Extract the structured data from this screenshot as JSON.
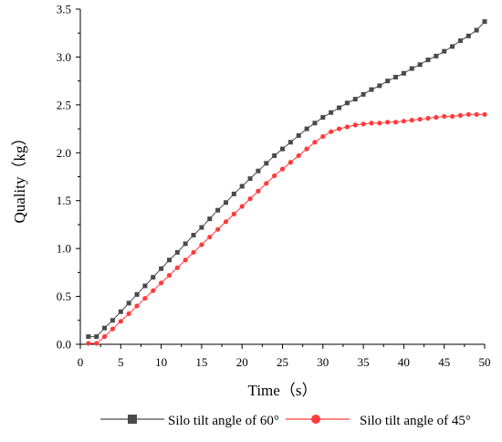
{
  "chart_data": {
    "type": "line",
    "title": "",
    "xlabel": "Time（s）",
    "ylabel": "Quality（kg）",
    "xlim": [
      0,
      50
    ],
    "ylim": [
      0,
      3.5
    ],
    "x_ticks": [
      "0",
      "5",
      "10",
      "15",
      "20",
      "25",
      "30",
      "35",
      "40",
      "45",
      "50"
    ],
    "y_ticks": [
      "0.0",
      "0.5",
      "1.0",
      "1.5",
      "2.0",
      "2.5",
      "3.0",
      "3.5"
    ],
    "grid": false,
    "legend_position": "bottom",
    "x": [
      1,
      2,
      3,
      4,
      5,
      6,
      7,
      8,
      9,
      10,
      11,
      12,
      13,
      14,
      15,
      16,
      17,
      18,
      19,
      20,
      21,
      22,
      23,
      24,
      25,
      26,
      27,
      28,
      29,
      30,
      31,
      32,
      33,
      34,
      35,
      36,
      37,
      38,
      39,
      40,
      41,
      42,
      43,
      44,
      45,
      46,
      47,
      48,
      49,
      50
    ],
    "series": [
      {
        "name": "Silo tilt angle of 60°",
        "color": "#4a4a4a",
        "marker": "square",
        "values": [
          0.08,
          0.08,
          0.17,
          0.25,
          0.34,
          0.43,
          0.52,
          0.61,
          0.7,
          0.79,
          0.88,
          0.96,
          1.05,
          1.14,
          1.22,
          1.31,
          1.4,
          1.48,
          1.57,
          1.65,
          1.73,
          1.81,
          1.89,
          1.97,
          2.04,
          2.11,
          2.18,
          2.25,
          2.31,
          2.37,
          2.42,
          2.47,
          2.52,
          2.56,
          2.61,
          2.66,
          2.7,
          2.75,
          2.79,
          2.83,
          2.88,
          2.92,
          2.97,
          3.01,
          3.06,
          3.11,
          3.17,
          3.22,
          3.28,
          3.37
        ]
      },
      {
        "name": "Silo tilt angle of 45°",
        "color": "#ff3b3b",
        "marker": "circle",
        "values": [
          0.01,
          0.01,
          0.08,
          0.16,
          0.24,
          0.32,
          0.4,
          0.48,
          0.56,
          0.64,
          0.72,
          0.8,
          0.88,
          0.96,
          1.04,
          1.12,
          1.2,
          1.28,
          1.36,
          1.44,
          1.52,
          1.6,
          1.68,
          1.76,
          1.83,
          1.9,
          1.97,
          2.04,
          2.11,
          2.17,
          2.22,
          2.25,
          2.27,
          2.29,
          2.3,
          2.31,
          2.31,
          2.32,
          2.32,
          2.33,
          2.34,
          2.35,
          2.36,
          2.37,
          2.38,
          2.38,
          2.39,
          2.4,
          2.4,
          2.4
        ]
      }
    ]
  }
}
